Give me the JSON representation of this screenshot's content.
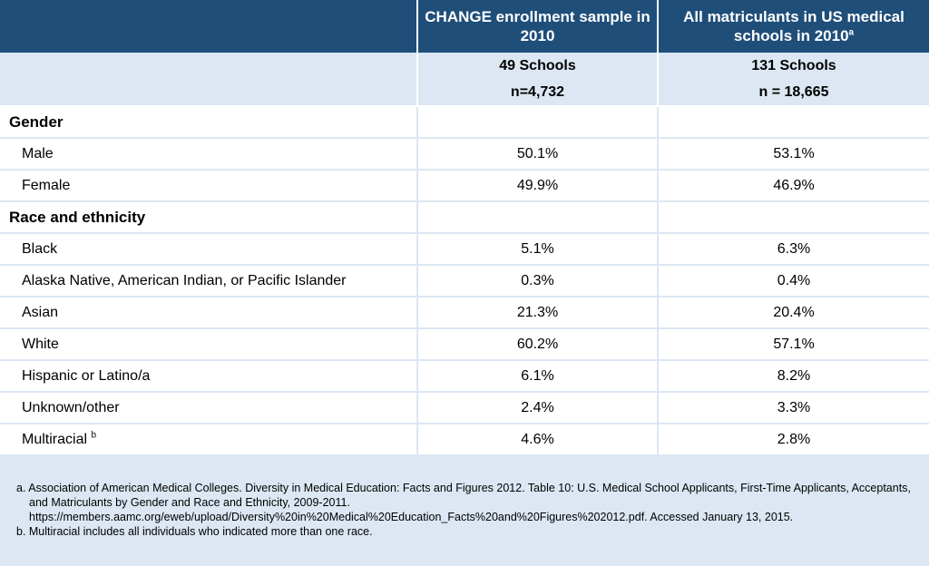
{
  "header": {
    "col2": "CHANGE enrollment sample in 2010",
    "col3": "All matriculants in US medical schools in 2010",
    "col3_sup": "a"
  },
  "subheader": {
    "col2_schools": "49 Schools",
    "col2_n": "n=4,732",
    "col3_schools": "131 Schools",
    "col3_n": "n = 18,665"
  },
  "rows": [
    {
      "label": "Gender",
      "v1": "",
      "v2": ""
    },
    {
      "label": "Male",
      "v1": "50.1%",
      "v2": "53.1%"
    },
    {
      "label": "Female",
      "v1": "49.9%",
      "v2": "46.9%"
    },
    {
      "label": "Race and ethnicity",
      "v1": "",
      "v2": ""
    },
    {
      "label": "Black",
      "v1": "5.1%",
      "v2": "6.3%"
    },
    {
      "label": "Alaska Native, American Indian, or Pacific Islander",
      "v1": "0.3%",
      "v2": "0.4%"
    },
    {
      "label": "Asian",
      "v1": "21.3%",
      "v2": "20.4%"
    },
    {
      "label": "White",
      "v1": "60.2%",
      "v2": "57.1%"
    },
    {
      "label": "Hispanic or Latino/a",
      "v1": "6.1%",
      "v2": "8.2%"
    },
    {
      "label": "Unknown/other",
      "v1": "2.4%",
      "v2": "3.3%"
    },
    {
      "label": "Multiracial",
      "sup": "b",
      "v1": "4.6%",
      "v2": "2.8%"
    }
  ],
  "footnotes": {
    "a": "a. Association of American Medical Colleges. Diversity in Medical Education: Facts and Figures 2012. Table 10: U.S. Medical School Applicants, First-Time Applicants, Acceptants, and Matriculants by Gender and Race and Ethnicity, 2009-2011. https://members.aamc.org/eweb/upload/Diversity%20in%20Medical%20Education_Facts%20and%20Figures%202012.pdf.  Accessed January 13, 2015.",
    "b": "b. Multiracial includes all individuals who indicated more than one race."
  },
  "colors": {
    "header_bg": "#1f4e79",
    "page_bg": "#dce7f3",
    "cell_bg": "#ffffff"
  }
}
